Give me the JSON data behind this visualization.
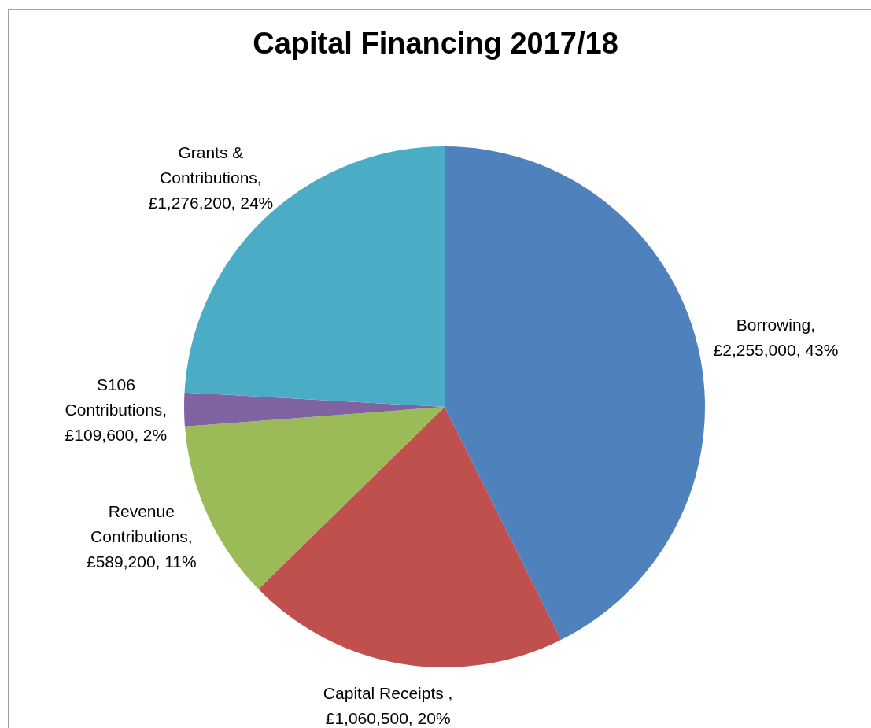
{
  "chart_data": {
    "type": "pie",
    "title": "Capital Financing 2017/18",
    "categories": [
      "Borrowing",
      "Capital Receipts ",
      "Revenue Contributions",
      "S106 Contributions",
      "Grants & Contributions"
    ],
    "values": [
      2255000,
      1060500,
      589200,
      109600,
      1276200
    ],
    "colors": [
      "#4f81bd",
      "#c0504d",
      "#9bbb59",
      "#8064a2",
      "#4bacc6"
    ],
    "value_labels": [
      ", £2,255,000, 43%",
      ", £1,060,500, 20%",
      ", £589,200, 11%",
      ", £109,600, 2%",
      ", £1,276,200, 24%"
    ],
    "legend": false
  }
}
